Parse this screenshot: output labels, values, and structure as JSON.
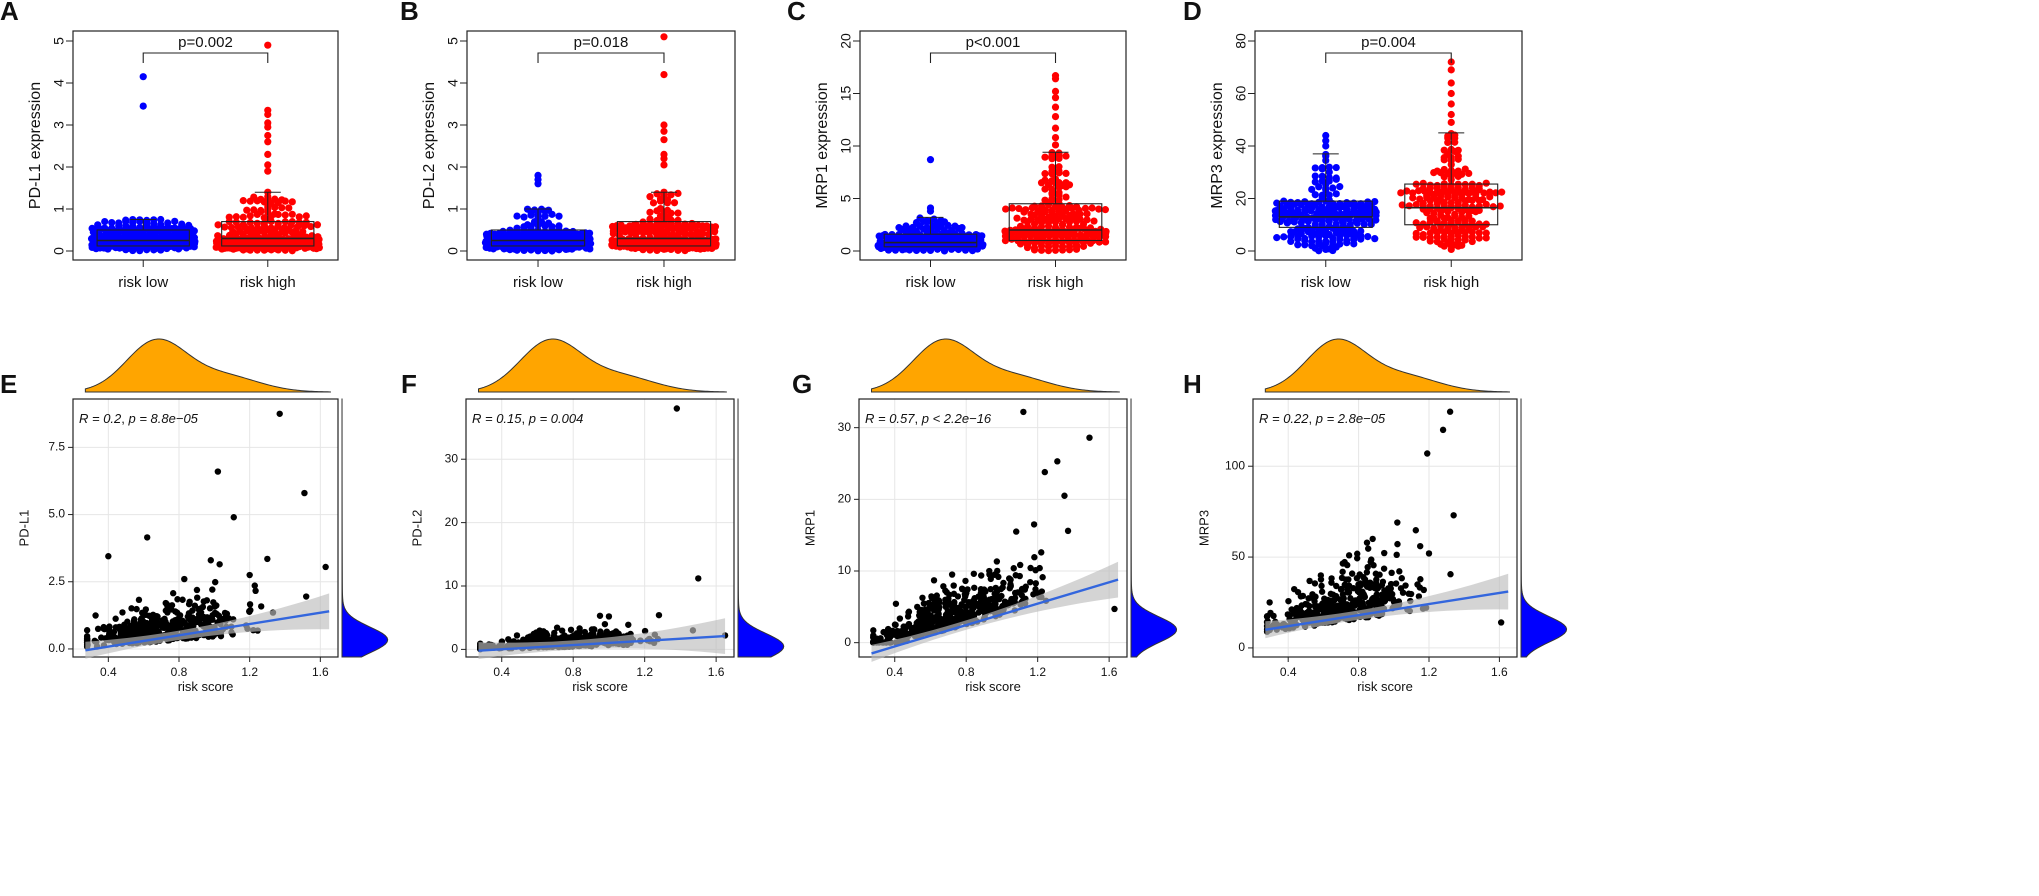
{
  "colors": {
    "low": "#0000ff",
    "high": "#ff0000",
    "density_top": "#ffa500",
    "density_right": "#0000ff",
    "line": "#3366dd",
    "ci": "#bdbdbd",
    "grid": "#e6e6e6"
  },
  "chart_data": [
    {
      "type": "scatter",
      "subtype": "beeswarm-boxplot",
      "panel_label": "A",
      "ylabel": "PD-L1 expression",
      "categories": [
        "risk low",
        "risk high"
      ],
      "ylim": [
        0,
        5
      ],
      "yticks": [
        0,
        1,
        2,
        3,
        4,
        5
      ],
      "pvalue": "p=0.002",
      "box": [
        {
          "q1": 0.12,
          "median": 0.25,
          "q3": 0.5,
          "whisker_low": 0.0,
          "whisker_high": 0.75
        },
        {
          "q1": 0.12,
          "median": 0.3,
          "q3": 0.7,
          "whisker_low": 0.0,
          "whisker_high": 1.4
        }
      ],
      "outliers": [
        [
          4.15,
          3.45
        ],
        [
          4.9,
          3.35,
          3.25,
          3.05,
          2.95,
          2.75,
          2.6,
          2.3,
          2.05,
          1.9
        ]
      ]
    },
    {
      "type": "scatter",
      "subtype": "beeswarm-boxplot",
      "panel_label": "B",
      "ylabel": "PD-L2 expression",
      "categories": [
        "risk low",
        "risk high"
      ],
      "ylim": [
        0,
        5
      ],
      "yticks": [
        0,
        1,
        2,
        3,
        4,
        5
      ],
      "pvalue": "p=0.018",
      "box": [
        {
          "q1": 0.12,
          "median": 0.25,
          "q3": 0.5,
          "whisker_low": 0.0,
          "whisker_high": 1.0
        },
        {
          "q1": 0.12,
          "median": 0.3,
          "q3": 0.7,
          "whisker_low": 0.0,
          "whisker_high": 1.4
        }
      ],
      "outliers": [
        [
          1.8,
          1.7,
          1.6
        ],
        [
          5.1,
          4.2,
          3.0,
          2.85,
          2.65,
          2.3,
          2.2,
          2.05
        ]
      ]
    },
    {
      "type": "scatter",
      "subtype": "beeswarm-boxplot",
      "panel_label": "C",
      "ylabel": "MRP1 expression",
      "categories": [
        "risk low",
        "risk high"
      ],
      "ylim": [
        0,
        20
      ],
      "yticks": [
        0,
        5,
        10,
        15,
        20
      ],
      "pvalue": "p<0.001",
      "box": [
        {
          "q1": 0.4,
          "median": 0.8,
          "q3": 1.6,
          "whisker_low": 0.0,
          "whisker_high": 3.2
        },
        {
          "q1": 1.0,
          "median": 2.0,
          "q3": 4.5,
          "whisker_low": 0.0,
          "whisker_high": 9.4
        }
      ],
      "outliers": [
        [
          8.7,
          4.1,
          3.8
        ],
        [
          16.7,
          16.4,
          15.2,
          14.6,
          13.7,
          12.8,
          11.7,
          10.8,
          10.1
        ]
      ]
    },
    {
      "type": "scatter",
      "subtype": "beeswarm-boxplot",
      "panel_label": "D",
      "ylabel": "MRP3 expression",
      "categories": [
        "risk low",
        "risk high"
      ],
      "ylim": [
        0,
        80
      ],
      "yticks": [
        0,
        20,
        40,
        60,
        80
      ],
      "pvalue": "p=0.004",
      "box": [
        {
          "q1": 9,
          "median": 13,
          "q3": 19,
          "whisker_low": 0,
          "whisker_high": 37
        },
        {
          "q1": 10,
          "median": 16.5,
          "q3": 25.5,
          "whisker_low": 0.5,
          "whisker_high": 45
        }
      ],
      "outliers": [
        [
          44,
          42,
          40
        ],
        [
          72,
          69,
          64,
          60,
          56,
          52,
          49
        ]
      ]
    },
    {
      "type": "scatter",
      "subtype": "marginal-regression",
      "panel_label": "E",
      "xlabel": "risk score",
      "ylabel": "PD-L1",
      "xlim": [
        0.2,
        1.7
      ],
      "xticks": [
        0.4,
        0.8,
        1.2,
        1.6
      ],
      "ylim": [
        -0.3,
        9.3
      ],
      "yticks": [
        0.0,
        2.5,
        5.0,
        7.5
      ],
      "ytick_labels": [
        "0.0",
        "2.5",
        "5.0",
        "7.5"
      ],
      "annotation": {
        "r": "R = 0.2",
        "p": "p = 8.8e−05"
      },
      "fit": {
        "x": [
          0.27,
          1.65
        ],
        "y": [
          -0.05,
          1.4
        ]
      },
      "highlights": [
        [
          1.37,
          8.75
        ],
        [
          1.02,
          6.6
        ],
        [
          1.51,
          5.8
        ],
        [
          1.11,
          4.9
        ],
        [
          0.4,
          3.45
        ],
        [
          1.3,
          3.35
        ],
        [
          1.63,
          3.05
        ],
        [
          0.62,
          4.15
        ],
        [
          0.98,
          3.3
        ],
        [
          1.03,
          3.15
        ],
        [
          0.83,
          2.6
        ],
        [
          1.2,
          2.75
        ],
        [
          1.52,
          1.95
        ]
      ],
      "cloud": {
        "n": 420,
        "x_mean": 0.72,
        "x_sd": 0.22,
        "y_base": 0.05,
        "y_slope": 0.55,
        "y_noise": 0.55,
        "seed": 11
      }
    },
    {
      "type": "scatter",
      "subtype": "marginal-regression",
      "panel_label": "F",
      "xlabel": "risk score",
      "ylabel": "PD-L2",
      "xlim": [
        0.2,
        1.7
      ],
      "xticks": [
        0.4,
        0.8,
        1.2,
        1.6
      ],
      "ylim": [
        -1.2,
        39.5
      ],
      "yticks": [
        0,
        10,
        20,
        30
      ],
      "ytick_labels": [
        "0",
        "10",
        "20",
        "30"
      ],
      "annotation": {
        "r": "R = 0.15",
        "p": "p = 0.004"
      },
      "fit": {
        "x": [
          0.27,
          1.65
        ],
        "y": [
          -0.2,
          2.1
        ]
      },
      "highlights": [
        [
          1.38,
          38.0
        ],
        [
          1.5,
          11.2
        ],
        [
          1.65,
          2.2
        ],
        [
          0.95,
          5.3
        ],
        [
          1.0,
          5.2
        ],
        [
          1.28,
          5.4
        ],
        [
          1.47,
          3.0
        ]
      ],
      "cloud": {
        "n": 420,
        "x_mean": 0.72,
        "x_sd": 0.22,
        "y_base": 0.0,
        "y_slope": 0.8,
        "y_noise": 0.9,
        "seed": 23
      }
    },
    {
      "type": "scatter",
      "subtype": "marginal-regression",
      "panel_label": "G",
      "xlabel": "risk score",
      "ylabel": "MRP1",
      "xlim": [
        0.2,
        1.7
      ],
      "xticks": [
        0.4,
        0.8,
        1.2,
        1.6
      ],
      "ylim": [
        -2,
        34
      ],
      "yticks": [
        0,
        10,
        20,
        30
      ],
      "ytick_labels": [
        "0",
        "10",
        "20",
        "30"
      ],
      "annotation": {
        "r": "R = 0.57",
        "p": "p < 2.2e−16"
      },
      "fit": {
        "x": [
          0.27,
          1.65
        ],
        "y": [
          -1.5,
          8.8
        ]
      },
      "highlights": [
        [
          1.12,
          32.2
        ],
        [
          1.49,
          28.6
        ],
        [
          1.31,
          25.3
        ],
        [
          1.24,
          23.8
        ],
        [
          1.35,
          20.5
        ],
        [
          1.18,
          16.5
        ],
        [
          1.08,
          15.5
        ],
        [
          1.37,
          15.6
        ],
        [
          0.62,
          8.7
        ],
        [
          1.22,
          12.6
        ],
        [
          1.63,
          4.7
        ]
      ],
      "cloud": {
        "n": 420,
        "x_mean": 0.72,
        "x_sd": 0.22,
        "y_base": -1.2,
        "y_slope": 7.0,
        "y_noise": 2.4,
        "seed": 37
      }
    },
    {
      "type": "scatter",
      "subtype": "marginal-regression",
      "panel_label": "H",
      "xlabel": "risk score",
      "ylabel": "MRP3",
      "xlim": [
        0.2,
        1.7
      ],
      "xticks": [
        0.4,
        0.8,
        1.2,
        1.6
      ],
      "ylim": [
        -5,
        137
      ],
      "yticks": [
        0,
        50,
        100
      ],
      "ytick_labels": [
        "0",
        "50",
        "100"
      ],
      "annotation": {
        "r": "R = 0.22",
        "p": "p = 2.8e−05"
      },
      "fit": {
        "x": [
          0.27,
          1.65
        ],
        "y": [
          10,
          31
        ]
      },
      "highlights": [
        [
          1.32,
          130
        ],
        [
          1.28,
          120
        ],
        [
          1.19,
          107
        ],
        [
          1.34,
          73
        ],
        [
          1.02,
          69
        ],
        [
          0.88,
          60
        ],
        [
          1.15,
          56
        ],
        [
          1.2,
          52
        ],
        [
          1.61,
          14
        ]
      ],
      "cloud": {
        "n": 420,
        "x_mean": 0.72,
        "x_sd": 0.22,
        "y_base": 8,
        "y_slope": 15,
        "y_noise": 11,
        "seed": 53
      }
    }
  ]
}
